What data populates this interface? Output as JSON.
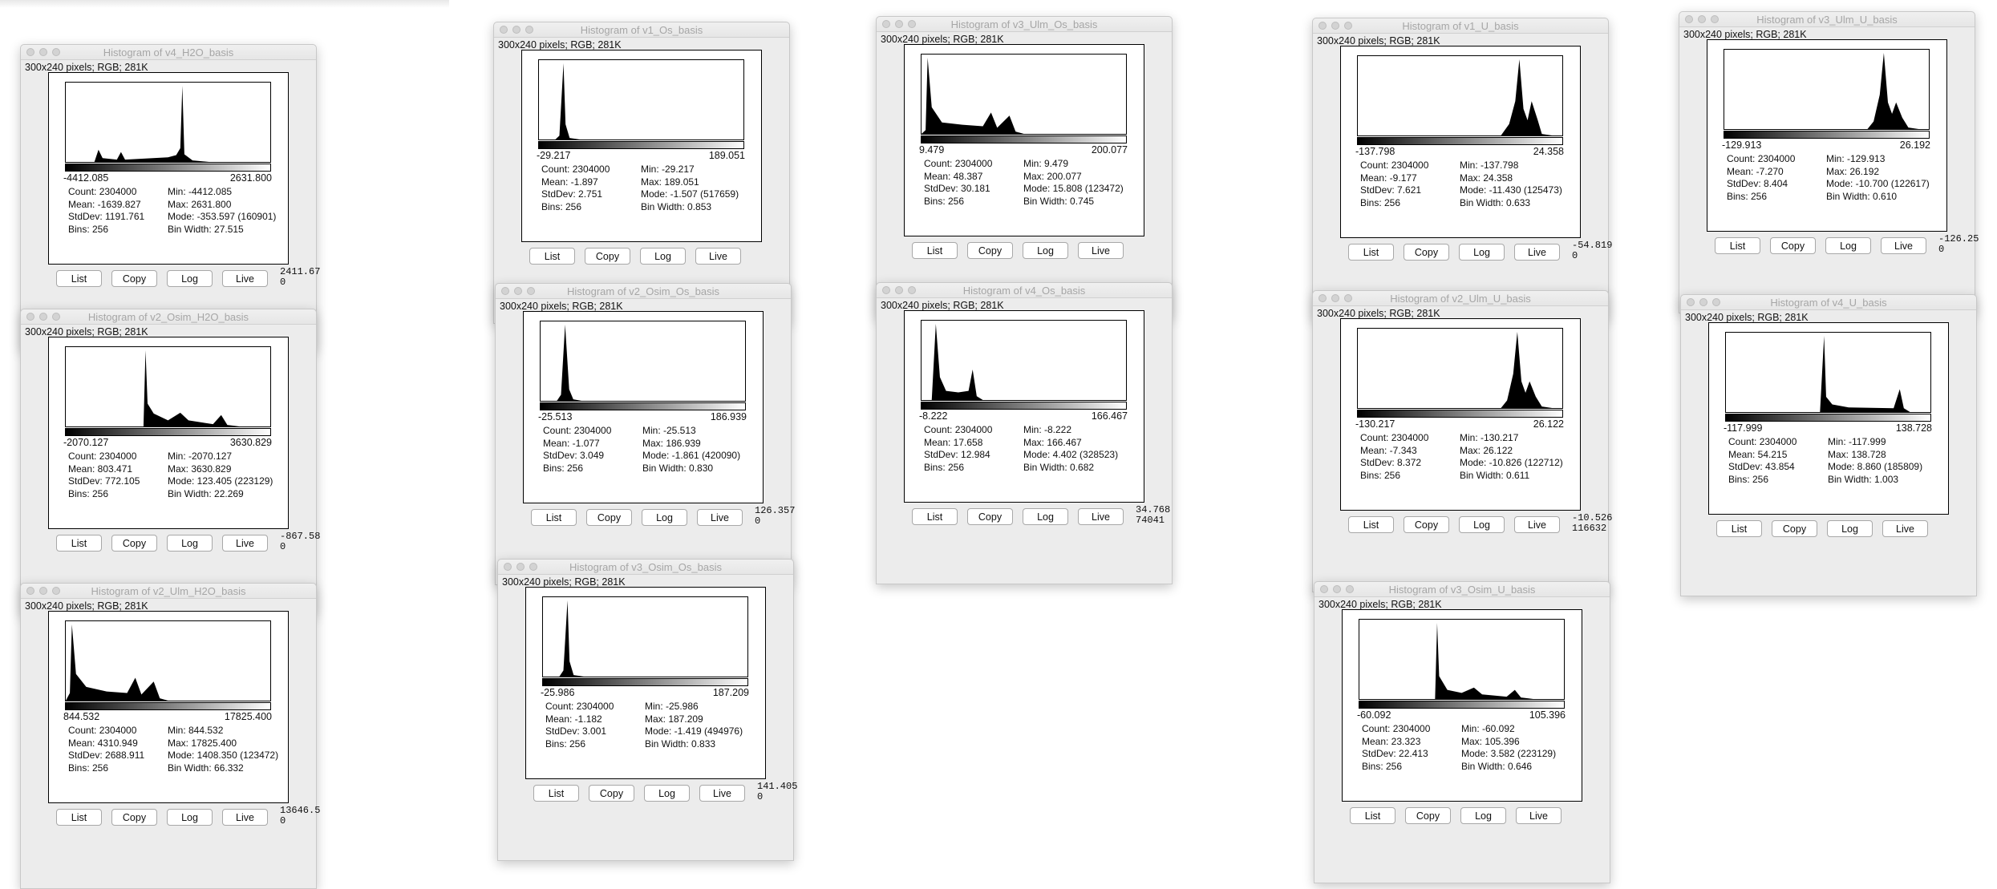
{
  "common": {
    "dims_label": "300x240 pixels; RGB; 281K",
    "buttons": {
      "list": "List",
      "copy": "Copy",
      "log": "Log",
      "live": "Live"
    }
  },
  "windows": [
    {
      "title": "Histogram of v4_H2O_basis",
      "min_label": "-4412.085",
      "max_label": "2631.800",
      "count": "Count: 2304000",
      "mean": "Mean: -1639.827",
      "stddev": "StdDev: 1191.761",
      "bins": "Bins: 256",
      "min": "Min: -4412.085",
      "max": "Max: 2631.800",
      "mode": "Mode: -353.597 (160901)",
      "binwidth": "Bin Width: 27.515",
      "cursor_value": "2411.67",
      "cursor_count": "0",
      "histogram": [
        [
          0,
          0
        ],
        [
          0.14,
          0
        ],
        [
          0.16,
          0.16
        ],
        [
          0.18,
          0.05
        ],
        [
          0.25,
          0.03
        ],
        [
          0.27,
          0.13
        ],
        [
          0.29,
          0.03
        ],
        [
          0.5,
          0.06
        ],
        [
          0.54,
          0.09
        ],
        [
          0.56,
          0.18
        ],
        [
          0.57,
          1.0
        ],
        [
          0.58,
          0.1
        ],
        [
          0.62,
          0.02
        ],
        [
          0.7,
          0
        ],
        [
          1,
          0
        ]
      ]
    },
    {
      "title": "Histogram of v2_Osim_H2O_basis",
      "min_label": "-2070.127",
      "max_label": "3630.829",
      "count": "Count: 2304000",
      "mean": "Mean: 803.471",
      "stddev": "StdDev: 772.105",
      "bins": "Bins: 256",
      "min": "Min: -2070.127",
      "max": "Max: 3630.829",
      "mode": "Mode: 123.405 (223129)",
      "binwidth": "Bin Width: 22.269",
      "cursor_value": "-867.58",
      "cursor_count": "0",
      "histogram": [
        [
          0,
          0
        ],
        [
          0.38,
          0
        ],
        [
          0.39,
          1.0
        ],
        [
          0.4,
          0.3
        ],
        [
          0.43,
          0.17
        ],
        [
          0.5,
          0.08
        ],
        [
          0.56,
          0.18
        ],
        [
          0.6,
          0.08
        ],
        [
          0.72,
          0.03
        ],
        [
          0.76,
          0.15
        ],
        [
          0.79,
          0.02
        ],
        [
          0.85,
          0
        ],
        [
          1,
          0
        ]
      ]
    },
    {
      "title": "Histogram of v2_Ulm_H2O_basis",
      "min_label": "844.532",
      "max_label": "17825.400",
      "count": "Count: 2304000",
      "mean": "Mean: 4310.949",
      "stddev": "StdDev: 2688.911",
      "bins": "Bins: 256",
      "min": "Min: 844.532",
      "max": "Max: 17825.400",
      "mode": "Mode: 1408.350 (123472)",
      "binwidth": "Bin Width: 66.332",
      "cursor_value": "13646.5",
      "cursor_count": "0",
      "histogram": [
        [
          0,
          0
        ],
        [
          0.02,
          0.1
        ],
        [
          0.03,
          1.0
        ],
        [
          0.05,
          0.35
        ],
        [
          0.1,
          0.18
        ],
        [
          0.2,
          0.12
        ],
        [
          0.3,
          0.1
        ],
        [
          0.34,
          0.3
        ],
        [
          0.37,
          0.08
        ],
        [
          0.43,
          0.25
        ],
        [
          0.46,
          0.03
        ],
        [
          0.5,
          0
        ],
        [
          1,
          0
        ]
      ]
    },
    {
      "title": "Histogram of v1_Os_basis",
      "min_label": "-29.217",
      "max_label": "189.051",
      "count": "Count: 2304000",
      "mean": "Mean: -1.897",
      "stddev": "StdDev: 2.751",
      "bins": "Bins: 256",
      "min": "Min: -29.217",
      "max": "Max: 189.051",
      "mode": "Mode: -1.507 (517659)",
      "binwidth": "Bin Width: 0.853",
      "cursor_value": "",
      "cursor_count": "",
      "histogram": [
        [
          0,
          0
        ],
        [
          0.08,
          0
        ],
        [
          0.1,
          0.05
        ],
        [
          0.12,
          1.0
        ],
        [
          0.13,
          0.2
        ],
        [
          0.15,
          0.02
        ],
        [
          0.2,
          0
        ],
        [
          1,
          0
        ]
      ]
    },
    {
      "title": "Histogram of v2_Osim_Os_basis",
      "min_label": "-25.513",
      "max_label": "186.939",
      "count": "Count: 2304000",
      "mean": "Mean: -1.077",
      "stddev": "StdDev: 3.049",
      "bins": "Bins: 256",
      "min": "Min: -25.513",
      "max": "Max: 186.939",
      "mode": "Mode: -1.861 (420090)",
      "binwidth": "Bin Width: 0.830",
      "cursor_value": "126.357",
      "cursor_count": "0",
      "histogram": [
        [
          0,
          0
        ],
        [
          0.08,
          0
        ],
        [
          0.1,
          0.08
        ],
        [
          0.12,
          1.0
        ],
        [
          0.14,
          0.15
        ],
        [
          0.16,
          0.02
        ],
        [
          0.2,
          0
        ],
        [
          1,
          0
        ]
      ]
    },
    {
      "title": "Histogram of v3_Osim_Os_basis",
      "min_label": "-25.986",
      "max_label": "187.209",
      "count": "Count: 2304000",
      "mean": "Mean: -1.182",
      "stddev": "StdDev: 3.001",
      "bins": "Bins: 256",
      "min": "Min: -25.986",
      "max": "Max: 187.209",
      "mode": "Mode: -1.419 (494976)",
      "binwidth": "Bin Width: 0.833",
      "cursor_value": "141.405",
      "cursor_count": "0",
      "histogram": [
        [
          0,
          0
        ],
        [
          0.08,
          0
        ],
        [
          0.1,
          0.08
        ],
        [
          0.12,
          1.0
        ],
        [
          0.13,
          0.2
        ],
        [
          0.15,
          0.02
        ],
        [
          0.2,
          0
        ],
        [
          1,
          0
        ]
      ]
    },
    {
      "title": "Histogram of v3_Ulm_Os_basis",
      "min_label": "9.479",
      "max_label": "200.077",
      "count": "Count: 2304000",
      "mean": "Mean: 48.387",
      "stddev": "StdDev: 30.181",
      "bins": "Bins: 256",
      "min": "Min: 9.479",
      "max": "Max: 200.077",
      "mode": "Mode: 15.808 (123472)",
      "binwidth": "Bin Width: 0.745",
      "cursor_value": "",
      "cursor_count": "",
      "histogram": [
        [
          0,
          0
        ],
        [
          0.02,
          0.05
        ],
        [
          0.03,
          1.0
        ],
        [
          0.05,
          0.35
        ],
        [
          0.1,
          0.15
        ],
        [
          0.2,
          0.12
        ],
        [
          0.3,
          0.1
        ],
        [
          0.34,
          0.28
        ],
        [
          0.37,
          0.08
        ],
        [
          0.43,
          0.24
        ],
        [
          0.46,
          0.03
        ],
        [
          0.5,
          0
        ],
        [
          1,
          0
        ]
      ]
    },
    {
      "title": "Histogram of v4_Os_basis",
      "min_label": "-8.222",
      "max_label": "166.467",
      "count": "Count: 2304000",
      "mean": "Mean: 17.658",
      "stddev": "StdDev: 12.984",
      "bins": "Bins: 256",
      "min": "Min: -8.222",
      "max": "Max: 166.467",
      "mode": "Mode: 4.402 (328523)",
      "binwidth": "Bin Width: 0.682",
      "cursor_value": "34.768",
      "cursor_count": "74041",
      "histogram": [
        [
          0,
          0
        ],
        [
          0.05,
          0
        ],
        [
          0.07,
          1.0
        ],
        [
          0.09,
          0.3
        ],
        [
          0.12,
          0.12
        ],
        [
          0.18,
          0.1
        ],
        [
          0.23,
          0.12
        ],
        [
          0.25,
          0.4
        ],
        [
          0.27,
          0.05
        ],
        [
          0.3,
          0
        ],
        [
          1,
          0
        ]
      ]
    },
    {
      "title": "Histogram of v1_U_basis",
      "min_label": "-137.798",
      "max_label": "24.358",
      "count": "Count: 2304000",
      "mean": "Mean: -9.177",
      "stddev": "StdDev: 7.621",
      "bins": "Bins: 256",
      "min": "Min: -137.798",
      "max": "Max: 24.358",
      "mode": "Mode: -11.430 (125473)",
      "binwidth": "Bin Width: 0.633",
      "cursor_value": "-54.819",
      "cursor_count": "0",
      "histogram": [
        [
          0,
          0
        ],
        [
          0.7,
          0
        ],
        [
          0.74,
          0.15
        ],
        [
          0.77,
          0.45
        ],
        [
          0.79,
          1.0
        ],
        [
          0.81,
          0.35
        ],
        [
          0.83,
          0.2
        ],
        [
          0.85,
          0.45
        ],
        [
          0.88,
          0.2
        ],
        [
          0.9,
          0.02
        ],
        [
          0.95,
          0
        ],
        [
          1,
          0
        ]
      ]
    },
    {
      "title": "Histogram of v2_Ulm_U_basis",
      "min_label": "-130.217",
      "max_label": "26.122",
      "count": "Count: 2304000",
      "mean": "Mean: -7.343",
      "stddev": "StdDev: 8.372",
      "bins": "Bins: 256",
      "min": "Min: -130.217",
      "max": "Max: 26.122",
      "mode": "Mode: -10.826 (122712)",
      "binwidth": "Bin Width: 0.611",
      "cursor_value": "-10.526",
      "cursor_count": "116632",
      "histogram": [
        [
          0,
          0
        ],
        [
          0.7,
          0
        ],
        [
          0.73,
          0.1
        ],
        [
          0.76,
          0.45
        ],
        [
          0.78,
          1.0
        ],
        [
          0.8,
          0.35
        ],
        [
          0.82,
          0.2
        ],
        [
          0.84,
          0.35
        ],
        [
          0.87,
          0.15
        ],
        [
          0.9,
          0.02
        ],
        [
          0.95,
          0
        ],
        [
          1,
          0
        ]
      ]
    },
    {
      "title": "Histogram of v3_Osim_U_basis",
      "min_label": "-60.092",
      "max_label": "105.396",
      "count": "Count: 2304000",
      "mean": "Mean: 23.323",
      "stddev": "StdDev: 22.413",
      "bins": "Bins: 256",
      "min": "Min: -60.092",
      "max": "Max: 105.396",
      "mode": "Mode: 3.582 (223129)",
      "binwidth": "Bin Width: 0.646",
      "cursor_value": "",
      "cursor_count": "",
      "histogram": [
        [
          0,
          0
        ],
        [
          0.37,
          0
        ],
        [
          0.38,
          1.0
        ],
        [
          0.39,
          0.3
        ],
        [
          0.43,
          0.12
        ],
        [
          0.5,
          0.08
        ],
        [
          0.56,
          0.15
        ],
        [
          0.6,
          0.06
        ],
        [
          0.72,
          0.03
        ],
        [
          0.76,
          0.12
        ],
        [
          0.79,
          0.02
        ],
        [
          0.85,
          0
        ],
        [
          1,
          0
        ]
      ]
    },
    {
      "title": "Histogram of v3_Ulm_U_basis",
      "min_label": "-129.913",
      "max_label": "26.192",
      "count": "Count: 2304000",
      "mean": "Mean: -7.270",
      "stddev": "StdDev: 8.404",
      "bins": "Bins: 256",
      "min": "Min: -129.913",
      "max": "Max: 26.192",
      "mode": "Mode: -10.700 (122617)",
      "binwidth": "Bin Width: 0.610",
      "cursor_value": "-126.25",
      "cursor_count": "0",
      "histogram": [
        [
          0,
          0
        ],
        [
          0.7,
          0
        ],
        [
          0.73,
          0.1
        ],
        [
          0.76,
          0.45
        ],
        [
          0.78,
          1.0
        ],
        [
          0.8,
          0.35
        ],
        [
          0.82,
          0.2
        ],
        [
          0.84,
          0.35
        ],
        [
          0.87,
          0.15
        ],
        [
          0.9,
          0.02
        ],
        [
          0.95,
          0
        ],
        [
          1,
          0
        ]
      ]
    },
    {
      "title": "Histogram of v4_U_basis",
      "min_label": "-117.999",
      "max_label": "138.728",
      "count": "Count: 2304000",
      "mean": "Mean: 54.215",
      "stddev": "StdDev: 43.854",
      "bins": "Bins: 256",
      "min": "Min: -117.999",
      "max": "Max: 138.728",
      "mode": "Mode: 8.860 (185809)",
      "binwidth": "Bin Width: 1.003",
      "cursor_value": "",
      "cursor_count": "",
      "histogram": [
        [
          0,
          0
        ],
        [
          0.46,
          0
        ],
        [
          0.48,
          1.0
        ],
        [
          0.49,
          0.2
        ],
        [
          0.52,
          0.1
        ],
        [
          0.6,
          0.06
        ],
        [
          0.82,
          0.05
        ],
        [
          0.85,
          0.3
        ],
        [
          0.87,
          0.05
        ],
        [
          0.9,
          0
        ],
        [
          1,
          0
        ]
      ]
    }
  ]
}
